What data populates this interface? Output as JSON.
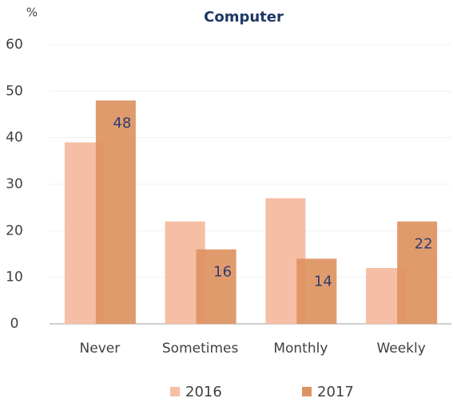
{
  "chart_data": {
    "type": "bar",
    "title": "Computer",
    "y_label": "%",
    "categories": [
      "Never",
      "Sometimes",
      "Monthly",
      "Weekly"
    ],
    "series": [
      {
        "name": "2016",
        "color": "#f5bea5",
        "values": [
          39,
          22,
          27,
          12
        ],
        "show_labels": false
      },
      {
        "name": "2017",
        "color": "#dd9360",
        "values": [
          48,
          16,
          14,
          22
        ],
        "show_labels": true
      }
    ],
    "ylim": [
      0,
      60
    ],
    "yticks": [
      0,
      10,
      20,
      30,
      40,
      50,
      60
    ],
    "grid": true,
    "legend": "bottom"
  }
}
